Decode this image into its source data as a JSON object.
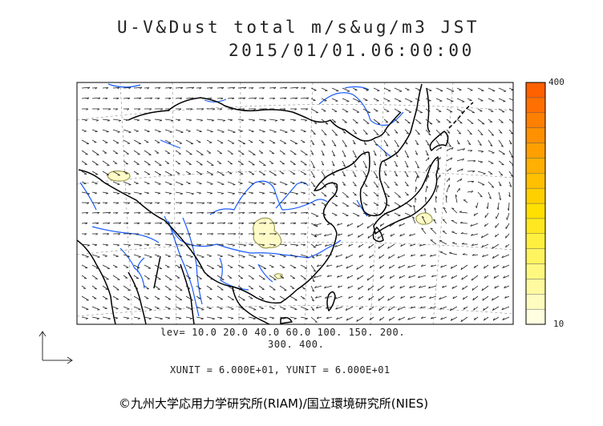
{
  "title": {
    "line1": "U-V&Dust total m/s&ug/m3 JST",
    "line2": "2015/01/01.06:00:00"
  },
  "colorbar": {
    "max_label": "400",
    "min_label": "10",
    "colors": [
      "#fffee0",
      "#fffcc0",
      "#fffaa0",
      "#fff880",
      "#fff460",
      "#fff040",
      "#ffe820",
      "#ffe000",
      "#ffd000",
      "#ffc000",
      "#ffb000",
      "#ffa000",
      "#ff9000",
      "#ff8000",
      "#ff7000",
      "#ff6000"
    ]
  },
  "levels": {
    "line1": "lev= 10.0 20.0 40.0 60.0 100. 150. 200.",
    "line2": "300. 400."
  },
  "units": "XUNIT = 6.000E+01, YUNIT = 6.000E+01",
  "credit": "©九州大学応用力学研究所(RIAM)/国立環境研究所(NIES)",
  "style": {
    "coast_color": "#000000",
    "river_color": "#1a5cff",
    "dust_fill": "#fffbc8",
    "dust_outline": "#8a8a3a",
    "wind_vector_color": "#222222"
  }
}
